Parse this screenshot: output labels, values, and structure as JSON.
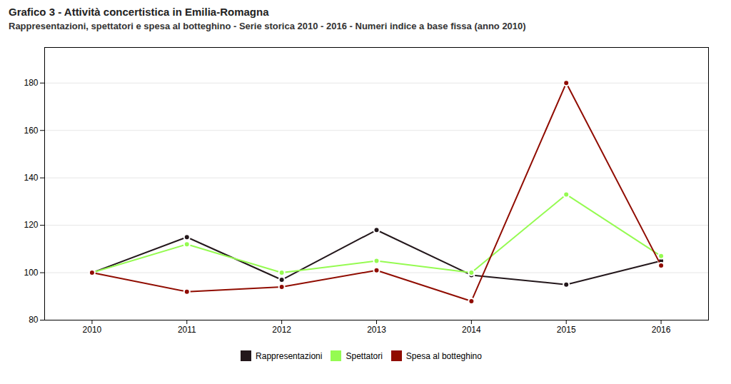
{
  "chart_data": {
    "type": "line",
    "title": "Grafico 3 - Attività concertistica in Emilia-Romagna",
    "subtitle": "Rappresentazioni, spettatori e spesa al botteghino - Serie storica 2010 - 2016 - Numeri indice a base fissa (anno 2010)",
    "x": [
      2010,
      2011,
      2012,
      2013,
      2014,
      2015,
      2016
    ],
    "series": [
      {
        "name": "Rappresentazioni",
        "values": [
          100,
          115,
          97,
          118,
          99,
          95,
          105
        ]
      },
      {
        "name": "Spettatori",
        "values": [
          100,
          112,
          100,
          105,
          100,
          133,
          107
        ]
      },
      {
        "name": "Spesa al botteghino",
        "values": [
          100,
          92,
          94,
          101,
          88,
          180,
          103
        ]
      }
    ],
    "xlim": [
      2009.5,
      2016.5
    ],
    "xticks": [
      2010,
      2011,
      2012,
      2013,
      2014,
      2015,
      2016
    ],
    "ylim": [
      80,
      195
    ],
    "yticks": [
      80,
      100,
      120,
      140,
      160,
      180
    ],
    "grid": true,
    "legend": "bottom",
    "marker": "circle"
  }
}
